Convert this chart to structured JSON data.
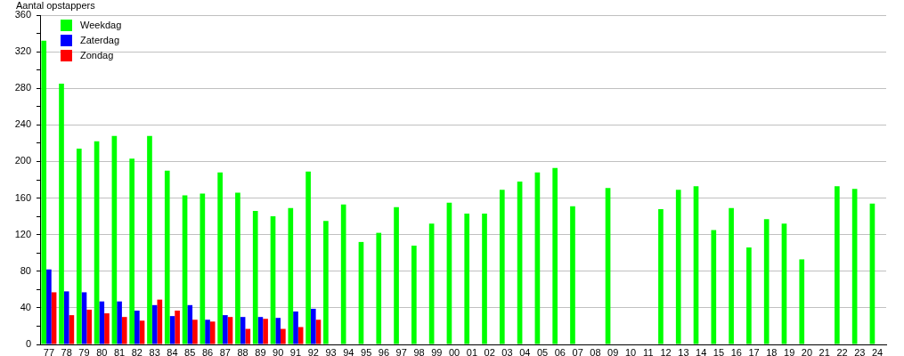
{
  "chart_data": {
    "type": "bar",
    "ylabel": "Aantal opstappers",
    "categories": [
      "77",
      "78",
      "79",
      "80",
      "81",
      "82",
      "83",
      "84",
      "85",
      "86",
      "87",
      "88",
      "89",
      "90",
      "91",
      "92",
      "93",
      "94",
      "95",
      "96",
      "97",
      "98",
      "99",
      "00",
      "01",
      "02",
      "03",
      "04",
      "05",
      "06",
      "07",
      "08",
      "09",
      "10",
      "11",
      "12",
      "13",
      "14",
      "15",
      "16",
      "17",
      "18",
      "19",
      "20",
      "21",
      "22",
      "23",
      "24"
    ],
    "series": [
      {
        "name": "Weekdag",
        "color": "#00ff00",
        "values": [
          332,
          285,
          214,
          222,
          228,
          203,
          228,
          190,
          163,
          165,
          188,
          166,
          146,
          140,
          149,
          189,
          135,
          153,
          112,
          122,
          150,
          108,
          132,
          155,
          143,
          143,
          169,
          178,
          188,
          193,
          151,
          null,
          171,
          null,
          null,
          148,
          169,
          173,
          125,
          149,
          106,
          137,
          132,
          93,
          null,
          173,
          170,
          154
        ]
      },
      {
        "name": "Zaterdag",
        "color": "#0000ff",
        "values": [
          82,
          58,
          57,
          47,
          47,
          37,
          43,
          31,
          43,
          27,
          32,
          30,
          30,
          29,
          36,
          39,
          null,
          null,
          null,
          null,
          null,
          null,
          null,
          null,
          null,
          null,
          null,
          null,
          null,
          null,
          null,
          null,
          null,
          null,
          null,
          null,
          null,
          null,
          null,
          null,
          null,
          null,
          null,
          null,
          null,
          null,
          null,
          null
        ]
      },
      {
        "name": "Zondag",
        "color": "#ff0000",
        "values": [
          57,
          32,
          38,
          34,
          30,
          26,
          49,
          37,
          27,
          25,
          30,
          17,
          28,
          17,
          19,
          27,
          null,
          null,
          null,
          null,
          null,
          null,
          null,
          null,
          null,
          null,
          null,
          null,
          null,
          null,
          null,
          null,
          null,
          null,
          null,
          null,
          null,
          null,
          null,
          null,
          null,
          null,
          null,
          null,
          null,
          null,
          null,
          null
        ]
      }
    ],
    "ylim": [
      0,
      360
    ],
    "yticks": [
      0,
      {
        "value": 20,
        "label": null
      },
      40,
      {
        "value": 60,
        "label": null
      },
      80,
      {
        "value": 100,
        "label": null
      },
      120,
      {
        "value": 140,
        "label": null
      },
      160,
      {
        "value": 180,
        "label": null
      },
      200,
      {
        "value": 220,
        "label": null
      },
      240,
      {
        "value": 260,
        "label": null
      },
      280,
      {
        "value": 300,
        "label": null
      },
      320,
      {
        "value": 340,
        "label": null
      },
      360
    ],
    "grid": "y",
    "legend": "top left"
  }
}
